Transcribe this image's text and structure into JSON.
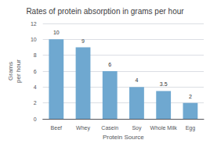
{
  "chart_data": {
    "type": "bar",
    "title": "Rates of protein absorption in grams per hour",
    "categories": [
      "Beef",
      "Whey",
      "Casein",
      "Soy",
      "Whole Milk",
      "Egg"
    ],
    "values": [
      10,
      9,
      6,
      4,
      3.5,
      2
    ],
    "color": "#6fa8d0",
    "xlabel": "Protein Source",
    "ylabel": "Grams\nper hour",
    "ylim": [
      0,
      12
    ],
    "yticks": [
      0,
      2,
      4,
      6,
      8,
      10,
      12
    ],
    "grid": true,
    "data_labels": true
  }
}
